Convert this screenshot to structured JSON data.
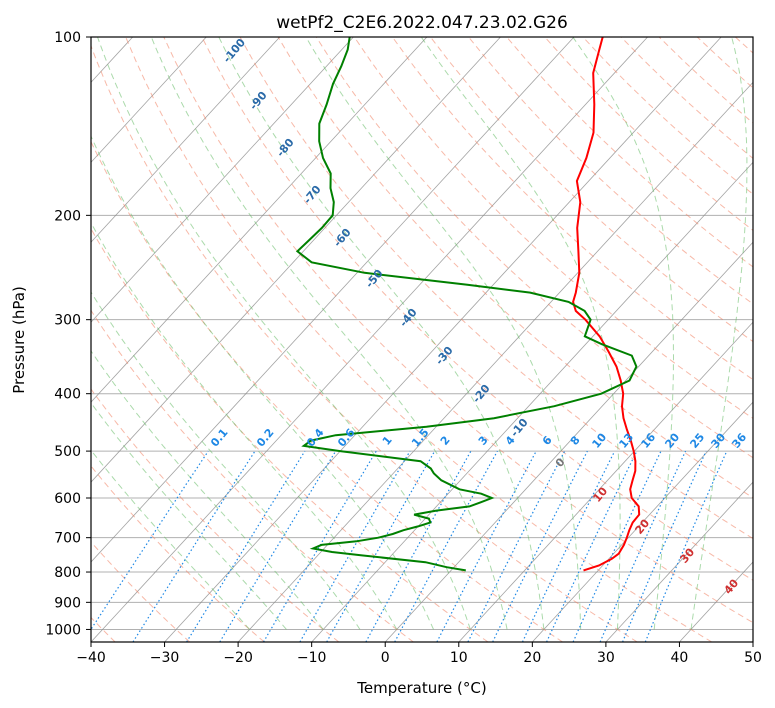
{
  "chart_data": {
    "type": "line",
    "title": "wetPf2_C2E6.2022.047.23.02.G26",
    "xlabel": "Temperature (°C)",
    "ylabel": "Pressure (hPa)",
    "xlim": [
      -40,
      50
    ],
    "ylim": [
      1050,
      100
    ],
    "y_scale": "log",
    "x_ticks": [
      -40,
      -30,
      -20,
      -10,
      0,
      10,
      20,
      30,
      40,
      50
    ],
    "y_ticks": [
      100,
      200,
      300,
      400,
      500,
      600,
      700,
      800,
      900,
      1000
    ],
    "grid": true,
    "skew": "skew-T",
    "series": [
      {
        "color": "#ff0000",
        "points": [
          [
            795,
            18.0
          ],
          [
            780,
            19.5
          ],
          [
            760,
            20.4
          ],
          [
            745,
            20.7
          ],
          [
            720,
            20.3
          ],
          [
            700,
            19.8
          ],
          [
            680,
            19.2
          ],
          [
            660,
            18.7
          ],
          [
            640,
            18.6
          ],
          [
            620,
            17.5
          ],
          [
            600,
            15.5
          ],
          [
            580,
            14.2
          ],
          [
            560,
            13.4
          ],
          [
            540,
            12.6
          ],
          [
            520,
            11.4
          ],
          [
            500,
            9.9
          ],
          [
            480,
            8.2
          ],
          [
            460,
            6.3
          ],
          [
            440,
            4.4
          ],
          [
            420,
            2.7
          ],
          [
            400,
            1.3
          ],
          [
            380,
            -0.7
          ],
          [
            360,
            -3.0
          ],
          [
            340,
            -5.9
          ],
          [
            320,
            -9.1
          ],
          [
            300,
            -13.1
          ],
          [
            290,
            -15.5
          ],
          [
            280,
            -17.0
          ],
          [
            270,
            -17.8
          ],
          [
            250,
            -19.8
          ],
          [
            230,
            -22.6
          ],
          [
            210,
            -25.7
          ],
          [
            190,
            -28.5
          ],
          [
            175,
            -31.6
          ],
          [
            160,
            -33.2
          ],
          [
            145,
            -35.4
          ],
          [
            130,
            -38.8
          ],
          [
            115,
            -42.9
          ],
          [
            105,
            -45.0
          ],
          [
            100,
            -46.1
          ]
        ]
      },
      {
        "color": "#008000",
        "points": [
          [
            795,
            2.0
          ],
          [
            785,
            -1.0
          ],
          [
            770,
            -4.5
          ],
          [
            750,
            -14.0
          ],
          [
            740,
            -18.5
          ],
          [
            730,
            -21.5
          ],
          [
            720,
            -20.8
          ],
          [
            710,
            -16.5
          ],
          [
            700,
            -14.0
          ],
          [
            690,
            -12.5
          ],
          [
            680,
            -11.5
          ],
          [
            670,
            -10.0
          ],
          [
            660,
            -8.8
          ],
          [
            650,
            -9.5
          ],
          [
            640,
            -12.0
          ],
          [
            630,
            -9.5
          ],
          [
            620,
            -5.5
          ],
          [
            610,
            -4.5
          ],
          [
            600,
            -3.5
          ],
          [
            590,
            -5.5
          ],
          [
            580,
            -9.0
          ],
          [
            560,
            -12.6
          ],
          [
            545,
            -14.5
          ],
          [
            535,
            -15.5
          ],
          [
            520,
            -17.8
          ],
          [
            500,
            -30.0
          ],
          [
            490,
            -35.6
          ],
          [
            480,
            -35.3
          ],
          [
            470,
            -32.6
          ],
          [
            455,
            -21.3
          ],
          [
            440,
            -13.2
          ],
          [
            420,
            -6.5
          ],
          [
            400,
            -1.7
          ],
          [
            380,
            0.5
          ],
          [
            360,
            -0.3
          ],
          [
            345,
            -2.3
          ],
          [
            330,
            -7.8
          ],
          [
            320,
            -11.1
          ],
          [
            300,
            -12.4
          ],
          [
            290,
            -14.3
          ],
          [
            280,
            -17.6
          ],
          [
            270,
            -24.0
          ],
          [
            262,
            -33.5
          ],
          [
            250,
            -49.0
          ],
          [
            240,
            -57.5
          ],
          [
            230,
            -60.8
          ],
          [
            220,
            -60.6
          ],
          [
            210,
            -60.4
          ],
          [
            200,
            -60.5
          ],
          [
            190,
            -62.0
          ],
          [
            180,
            -64.2
          ],
          [
            170,
            -66.0
          ],
          [
            160,
            -69.0
          ],
          [
            150,
            -71.6
          ],
          [
            140,
            -73.8
          ],
          [
            130,
            -75.2
          ],
          [
            120,
            -76.9
          ],
          [
            112,
            -78.0
          ],
          [
            105,
            -79.2
          ],
          [
            100,
            -80.5
          ]
        ]
      }
    ],
    "dry_adiabat_labels": [
      "-100",
      "-90",
      "-80",
      "-70",
      "-60",
      "-50",
      "-40",
      "-30",
      "-20",
      "-10"
    ],
    "mixing_ratio_labels": [
      "0.1",
      "0.2",
      "0.4",
      "0.6",
      "1",
      "1.5",
      "2",
      "3",
      "4",
      "6",
      "8",
      "10",
      "13",
      "16",
      "20",
      "25",
      "30",
      "36"
    ],
    "moist_adiabat_labels": [
      "0",
      "10",
      "20",
      "30",
      "40"
    ],
    "colors": {
      "temperature": "#ff0000",
      "dewpoint": "#008000",
      "grid": "#b0b0b0",
      "isotherm": "#8c8c8c",
      "dry_adiabat": "#f08060",
      "moist_adiabat": "#66bb66",
      "mixing_ratio": "#1e88e5",
      "dry_label": "#2a6aa8",
      "moist_label": "#d03030",
      "zero_label": "#777777"
    }
  }
}
